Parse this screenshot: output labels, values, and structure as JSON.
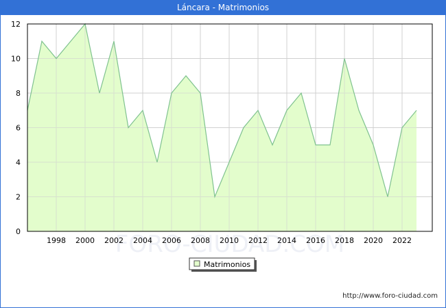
{
  "header": {
    "title": "Láncara - Matrimonios"
  },
  "footer": {
    "url": "http://www.foro-ciudad.com"
  },
  "watermark": "FORO-CIUDAD.COM",
  "colors": {
    "title_bar": "#3271d6",
    "area_fill": "#e3fdcc",
    "line": "#7fc28f",
    "grid": "#d0d0d0"
  },
  "chart_data": {
    "type": "area",
    "title": "Láncara - Matrimonios",
    "xlabel": "",
    "ylabel": "",
    "x": [
      1996,
      1997,
      1998,
      1999,
      2000,
      2001,
      2002,
      2003,
      2004,
      2005,
      2006,
      2007,
      2008,
      2009,
      2010,
      2011,
      2012,
      2013,
      2014,
      2015,
      2016,
      2017,
      2018,
      2019,
      2020,
      2021,
      2022,
      2023
    ],
    "series": [
      {
        "name": "Matrimonios",
        "values": [
          7,
          11,
          10,
          11,
          12,
          8,
          11,
          6,
          7,
          4,
          8,
          9,
          8,
          2,
          4,
          6,
          7,
          5,
          7,
          8,
          5,
          5,
          10,
          7,
          5,
          2,
          6,
          7
        ]
      }
    ],
    "x_ticks": [
      "1998",
      "2000",
      "2002",
      "2004",
      "2006",
      "2008",
      "2010",
      "2012",
      "2014",
      "2016",
      "2018",
      "2020",
      "2022"
    ],
    "y_ticks": [
      "0",
      "2",
      "4",
      "6",
      "8",
      "10",
      "12"
    ],
    "ylim": [
      0,
      12
    ],
    "grid": true,
    "legend": {
      "position": "bottom-center",
      "entries": [
        "Matrimonios"
      ]
    }
  }
}
